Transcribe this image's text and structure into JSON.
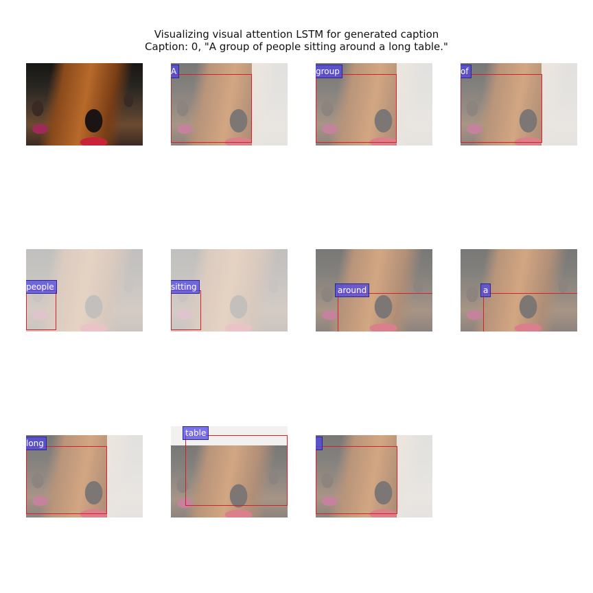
{
  "figure": {
    "title_line1": "Visualizing visual attention LSTM for generated caption",
    "title_line2": "Caption: 0, \"A group of people sitting around a long table.\""
  },
  "panels": [
    {
      "word": ""
    },
    {
      "word": "A"
    },
    {
      "word": "group"
    },
    {
      "word": "of"
    },
    {
      "word": "people"
    },
    {
      "word": "sitting"
    },
    {
      "word": "around"
    },
    {
      "word": "a"
    },
    {
      "word": "long"
    },
    {
      "word": "table"
    },
    {
      "word": ""
    }
  ]
}
